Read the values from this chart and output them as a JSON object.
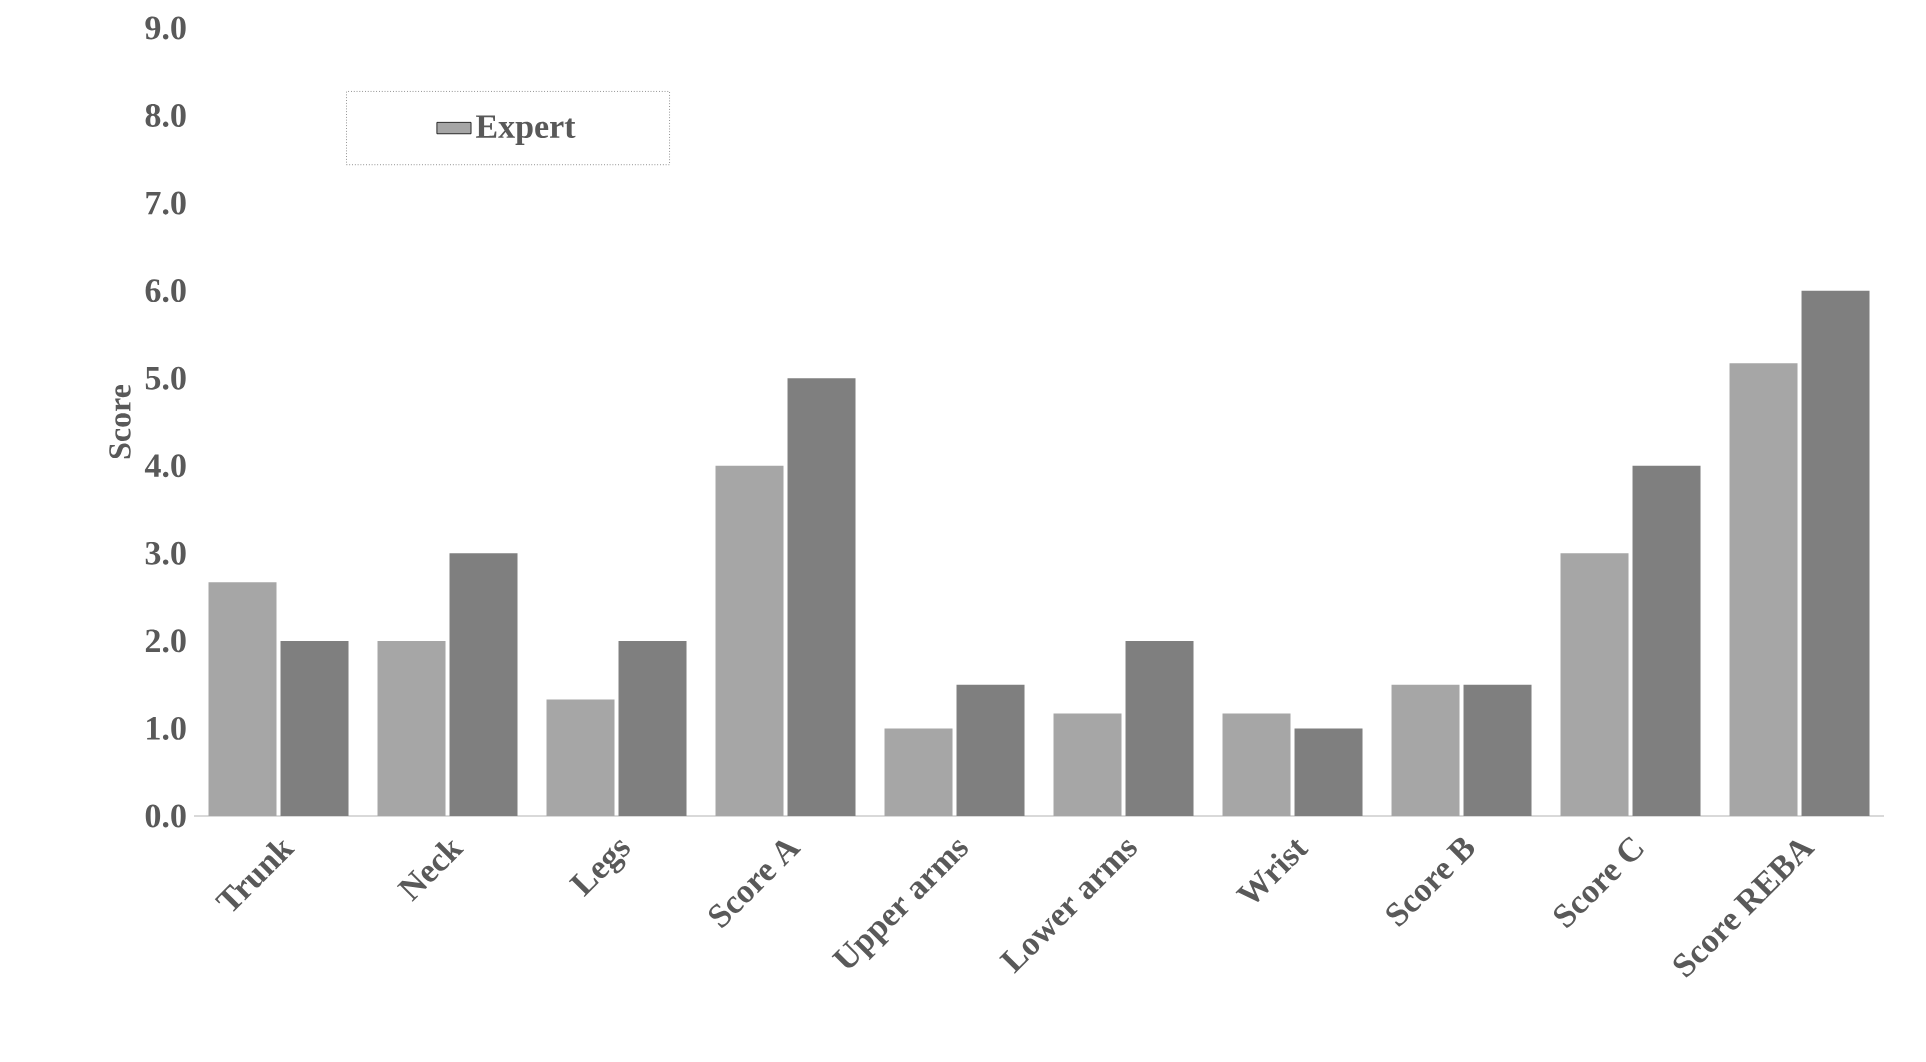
{
  "chart_data": {
    "type": "bar",
    "ylabel": "Score",
    "categories": [
      "Trunk",
      "Neck",
      "Legs",
      "Score A",
      "Upper arms",
      "Lower arms",
      "Wrist",
      "Score B",
      "Score C",
      "Score REBA"
    ],
    "series": [
      {
        "name": "Expert",
        "color": "#a6a6a6",
        "values": [
          2.67,
          2.0,
          1.33,
          4.0,
          1.0,
          1.17,
          1.17,
          1.5,
          3.0,
          5.17
        ]
      },
      {
        "color": "#7f7f7f",
        "values": [
          2.0,
          3.0,
          2.0,
          5.0,
          1.5,
          2.0,
          1.0,
          1.5,
          4.0,
          6.0
        ]
      }
    ],
    "ylim": [
      0,
      9
    ],
    "yticks": [
      {
        "value": 0,
        "label": "0.0"
      },
      {
        "value": 1,
        "label": "1.0"
      },
      {
        "value": 2,
        "label": "2.0"
      },
      {
        "value": 3,
        "label": "3.0"
      },
      {
        "value": 4,
        "label": "4.0"
      },
      {
        "value": 5,
        "label": "5.0"
      },
      {
        "value": 6,
        "label": "6.0"
      },
      {
        "value": 7,
        "label": "7.0"
      },
      {
        "value": 8,
        "label": "8.0"
      },
      {
        "value": 9,
        "label": "9.0"
      }
    ],
    "grid": false,
    "legend": "top left"
  }
}
